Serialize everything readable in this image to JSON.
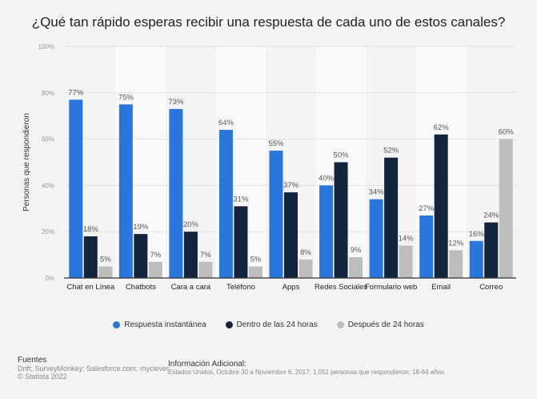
{
  "chart_data": {
    "type": "bar",
    "title": "¿Qué tan rápido esperas recibir una respuesta de cada uno de estos canales?",
    "xlabel": "",
    "ylabel": "Personas que respondieron",
    "ylim": [
      0,
      100
    ],
    "yticks": [
      "0%",
      "20%",
      "40%",
      "60%",
      "80%",
      "100%"
    ],
    "grid": true,
    "legend_position": "bottom",
    "categories": [
      "Chat en Línea",
      "Chatbots",
      "Cara a cara",
      "Teléfono",
      "Apps",
      "Redes Sociales",
      "Formulario web",
      "Email",
      "Correo"
    ],
    "series": [
      {
        "name": "Respuesta instantánea",
        "color": "#2a76dd",
        "values": [
          77,
          75,
          73,
          64,
          55,
          40,
          34,
          27,
          16
        ]
      },
      {
        "name": "Dentro de las 24 horas",
        "color": "#13253d",
        "values": [
          18,
          19,
          20,
          31,
          37,
          50,
          52,
          62,
          24
        ]
      },
      {
        "name": "Después de 24 horas",
        "color": "#bdbdbd",
        "values": [
          5,
          7,
          7,
          5,
          8,
          9,
          14,
          12,
          60
        ]
      }
    ]
  },
  "footer": {
    "sources_label": "Fuentes",
    "sources": "Drift; SurveyMonkey; Salesforce.com; myclever",
    "copyright": "© Statista 2022",
    "info_label": "Información Adicional:",
    "info": "Estados Unidos, Octubre 30 a Noviembre 6, 2017; 1,051 personas que respondieron; 18-64 años"
  }
}
